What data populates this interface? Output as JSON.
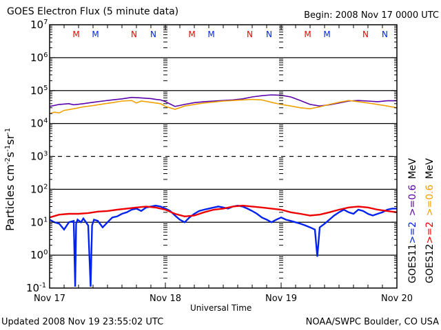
{
  "header": {
    "title": "GOES Electron Flux (5 minute data)",
    "begin": "Begin: 2008 Nov 17 0000 UTC"
  },
  "footer": {
    "updated": "Updated 2008 Nov 19 23:55:02 UTC",
    "credit": "NOAA/SWPC Boulder, CO USA"
  },
  "colors": {
    "goes11_low": "#5a00aa",
    "goes12_low": "#f0a000",
    "goes11_high": "#0022ee",
    "goes12_high": "#ee0000",
    "midnight_marker_goes12": "#ee0000",
    "midnight_marker_goes11": "#0022ee"
  },
  "chart_data": {
    "type": "line",
    "title": "GOES Electron Flux (5 minute data)",
    "xlabel": "Universal Time",
    "ylabel": "Particles cm-2 s-1 sr-1",
    "y_scale": "log",
    "ylim": [
      0.1,
      10000000
    ],
    "y_ticks": [
      {
        "base": "10",
        "exp": "7",
        "value": 10000000
      },
      {
        "base": "10",
        "exp": "6",
        "value": 1000000
      },
      {
        "base": "10",
        "exp": "5",
        "value": 100000
      },
      {
        "base": "10",
        "exp": "4",
        "value": 10000
      },
      {
        "base": "10",
        "exp": "3",
        "value": 1000
      },
      {
        "base": "10",
        "exp": "2",
        "value": 100
      },
      {
        "base": "10",
        "exp": "1",
        "value": 10
      },
      {
        "base": "10",
        "exp": "0",
        "value": 1
      },
      {
        "base": "10",
        "exp": "-1",
        "value": 0.1
      }
    ],
    "xlim_hours": [
      0,
      72
    ],
    "x_ticks": [
      {
        "label": "Nov 17",
        "hour": 0
      },
      {
        "label": "Nov 18",
        "hour": 24
      },
      {
        "label": "Nov 19",
        "hour": 48
      },
      {
        "label": "Nov 20",
        "hour": 72
      }
    ],
    "grid": "horizontal solid lines at decades 10^6, 10^5, 10^4, 10^2, 10^1, 10^0; dashed alert threshold at 10^3",
    "threshold": {
      "value": 1000,
      "style": "dashed"
    },
    "top_markers": [
      {
        "label": "M",
        "hour": 5.5,
        "color": "#ee0000"
      },
      {
        "label": "M",
        "hour": 9.5,
        "color": "#0022ee"
      },
      {
        "label": "N",
        "hour": 17.5,
        "color": "#ee0000"
      },
      {
        "label": "N",
        "hour": 21.5,
        "color": "#0022ee"
      },
      {
        "label": "M",
        "hour": 29.5,
        "color": "#ee0000"
      },
      {
        "label": "M",
        "hour": 33.5,
        "color": "#0022ee"
      },
      {
        "label": "N",
        "hour": 41.5,
        "color": "#ee0000"
      },
      {
        "label": "N",
        "hour": 45.5,
        "color": "#0022ee"
      },
      {
        "label": "M",
        "hour": 53.5,
        "color": "#ee0000"
      },
      {
        "label": "M",
        "hour": 57.5,
        "color": "#0022ee"
      },
      {
        "label": "N",
        "hour": 65.5,
        "color": "#ee0000"
      },
      {
        "label": "N",
        "hour": 69.5,
        "color": "#0022ee"
      }
    ],
    "legend": [
      {
        "label": "GOES11",
        "items": [
          {
            "text": ">=2",
            "color": "#0022ee"
          },
          {
            "text": ">=0.6",
            "color": "#5a00aa"
          },
          {
            "text": "MeV",
            "color": "#000000"
          }
        ]
      },
      {
        "label": "GOES12",
        "items": [
          {
            "text": ">=2",
            "color": "#ee0000"
          },
          {
            "text": ">=0.6",
            "color": "#f0a000"
          },
          {
            "text": "MeV",
            "color": "#000000"
          }
        ]
      }
    ],
    "legend_placement": "right, vertical",
    "series": [
      {
        "name": "GOES11 >=0.6 MeV",
        "color": "#5a00aa",
        "hours": [
          0,
          2,
          4,
          5,
          7,
          9,
          11,
          13,
          15,
          17,
          19,
          21,
          22,
          23,
          24,
          26,
          28,
          30,
          32,
          34,
          36,
          38,
          40,
          42,
          44,
          46,
          48,
          50,
          52,
          54,
          56,
          58,
          60,
          62,
          64,
          66,
          68,
          70,
          72
        ],
        "values": [
          33000,
          38000,
          40000,
          37000,
          40000,
          44000,
          48000,
          52000,
          56000,
          62000,
          60000,
          57000,
          54000,
          52000,
          46000,
          33000,
          38000,
          43000,
          46000,
          48000,
          50000,
          52000,
          56000,
          64000,
          70000,
          74000,
          72000,
          64000,
          50000,
          38000,
          34000,
          37000,
          42000,
          48000,
          50000,
          48000,
          46000,
          49000,
          49000
        ]
      },
      {
        "name": "GOES12 >=0.6 MeV",
        "color": "#f0a000",
        "hours": [
          0,
          1,
          2,
          3,
          5,
          7,
          9,
          11,
          13,
          15,
          17,
          18,
          19,
          21,
          23,
          24,
          26,
          28,
          30,
          32,
          34,
          36,
          38,
          40,
          42,
          44,
          46,
          48,
          50,
          52,
          54,
          56,
          58,
          60,
          62,
          64,
          66,
          68,
          70,
          72
        ],
        "values": [
          20000,
          22000,
          21000,
          25000,
          28000,
          32000,
          35000,
          39000,
          43000,
          48000,
          50000,
          42000,
          48000,
          44000,
          40000,
          33000,
          27000,
          34000,
          38000,
          42000,
          45000,
          48000,
          50000,
          52000,
          54000,
          52000,
          44000,
          38000,
          34000,
          30000,
          28000,
          32000,
          38000,
          44000,
          50000,
          46000,
          42000,
          38000,
          34000,
          30000
        ]
      },
      {
        "name": "GOES11 >=2 MeV",
        "color": "#0022ee",
        "hours": [
          0,
          1,
          2,
          3,
          4,
          5,
          5.3,
          5.5,
          5.8,
          6.5,
          7,
          8,
          8.5,
          8.8,
          9.2,
          10,
          11,
          12,
          13,
          14,
          15,
          16,
          17,
          18,
          19,
          20,
          21,
          22,
          23,
          24,
          25,
          26,
          27,
          28,
          29,
          30,
          31,
          32,
          33,
          34,
          35,
          36,
          37,
          38,
          39,
          40,
          41,
          42,
          43,
          44,
          45,
          46,
          47,
          48,
          49,
          50,
          51,
          52,
          53,
          54,
          55,
          55.5,
          56,
          57,
          58,
          59,
          60,
          61,
          62,
          63,
          64,
          65,
          66,
          67,
          68,
          69,
          70,
          71,
          72
        ],
        "values": [
          12,
          10,
          9,
          6,
          10,
          11,
          0.11,
          9,
          12,
          10,
          13,
          8,
          0.11,
          8,
          12,
          11,
          7,
          10,
          14,
          15,
          18,
          20,
          24,
          26,
          22,
          28,
          30,
          32,
          30,
          26,
          22,
          16,
          12,
          10,
          14,
          18,
          22,
          24,
          26,
          28,
          30,
          28,
          26,
          30,
          32,
          30,
          26,
          22,
          18,
          14,
          12,
          10,
          12,
          14,
          12,
          11,
          10,
          9,
          8,
          7,
          6,
          0.9,
          7,
          9,
          12,
          16,
          20,
          24,
          20,
          18,
          24,
          22,
          18,
          16,
          18,
          20,
          24,
          26,
          26
        ]
      },
      {
        "name": "GOES12 >=2 MeV",
        "color": "#ee0000",
        "hours": [
          0,
          2,
          4,
          6,
          8,
          10,
          12,
          14,
          16,
          18,
          20,
          22,
          24,
          26,
          28,
          30,
          32,
          34,
          36,
          38,
          40,
          42,
          44,
          46,
          48,
          50,
          52,
          54,
          56,
          58,
          60,
          62,
          64,
          66,
          68,
          70,
          72
        ],
        "values": [
          14,
          17,
          18,
          18,
          19,
          21,
          22,
          24,
          26,
          28,
          30,
          28,
          24,
          18,
          15,
          16,
          20,
          24,
          26,
          30,
          32,
          30,
          28,
          26,
          24,
          20,
          18,
          16,
          17,
          20,
          24,
          28,
          30,
          28,
          24,
          22,
          20
        ]
      }
    ]
  }
}
